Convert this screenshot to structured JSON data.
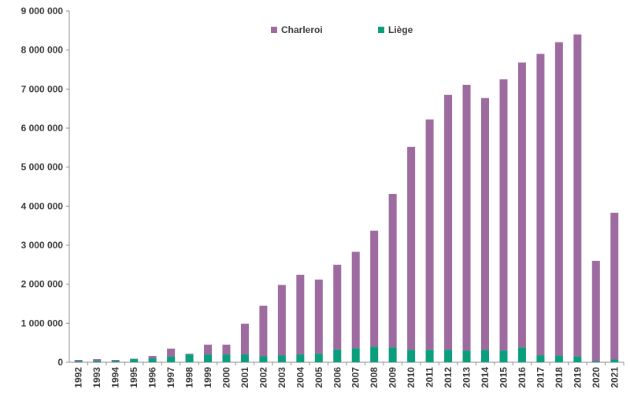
{
  "chart_data": {
    "type": "bar",
    "stacked": true,
    "categories": [
      "1992",
      "1993",
      "1994",
      "1995",
      "1996",
      "1997",
      "1998",
      "1999",
      "2000",
      "2001",
      "2002",
      "2003",
      "2004",
      "2005",
      "2006",
      "2007",
      "2008",
      "2009",
      "2010",
      "2011",
      "2012",
      "2013",
      "2014",
      "2015",
      "2016",
      "2017",
      "2018",
      "2019",
      "2020",
      "2021"
    ],
    "series": [
      {
        "name": "Liège",
        "color": "#0a9e7c",
        "values": [
          30000,
          40000,
          40000,
          80000,
          100000,
          150000,
          200000,
          200000,
          200000,
          200000,
          160000,
          180000,
          200000,
          220000,
          330000,
          360000,
          400000,
          380000,
          320000,
          320000,
          320000,
          300000,
          320000,
          300000,
          380000,
          180000,
          170000,
          150000,
          30000,
          70000
        ]
      },
      {
        "name": "Charleroi",
        "color": "#9d6b9f",
        "values": [
          30000,
          40000,
          20000,
          10000,
          60000,
          200000,
          20000,
          250000,
          250000,
          790000,
          1290000,
          1800000,
          2040000,
          1900000,
          2170000,
          2470000,
          2970000,
          3930000,
          5200000,
          5900000,
          6530000,
          6810000,
          6450000,
          6950000,
          7300000,
          7720000,
          8030000,
          8250000,
          2570000,
          3760000
        ]
      }
    ],
    "yticks": [
      "0",
      "1 000 000",
      "2 000 000",
      "3 000 000",
      "4 000 000",
      "5 000 000",
      "6 000 000",
      "7 000 000",
      "8 000 000",
      "9 000 000"
    ],
    "ylim": [
      0,
      9000000
    ],
    "legend": {
      "position": "top",
      "order": [
        "Charleroi",
        "Liège"
      ]
    },
    "title": "",
    "xlabel": "",
    "ylabel": "",
    "grid": false
  }
}
